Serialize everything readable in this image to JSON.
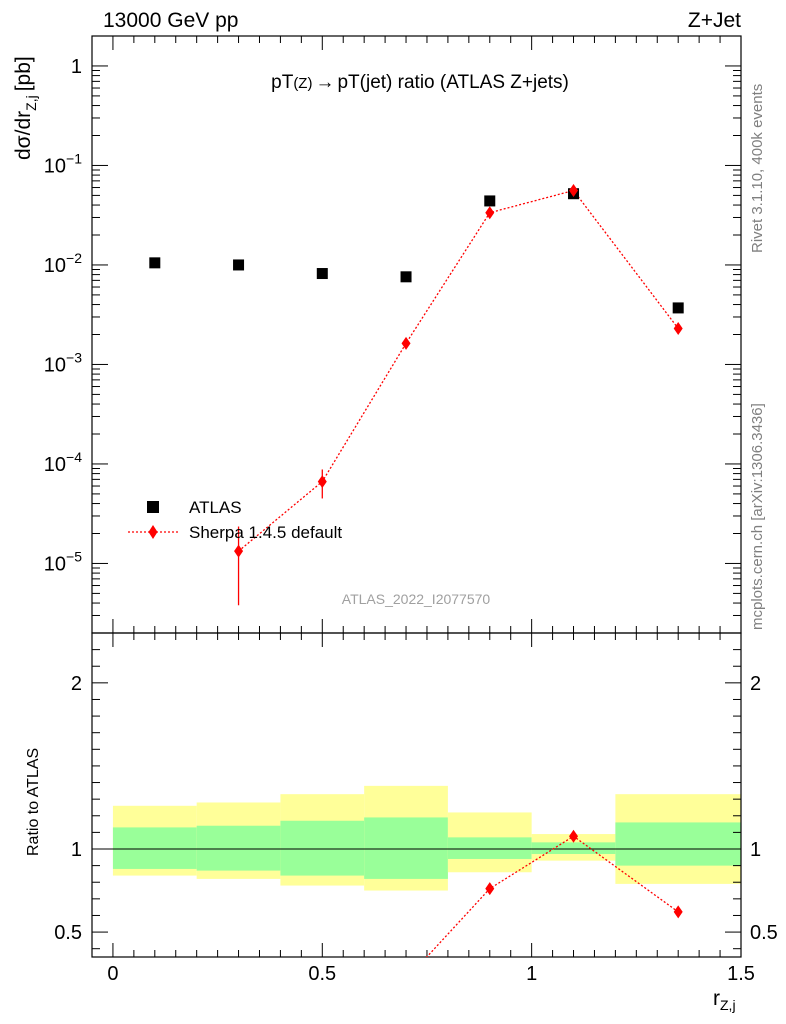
{
  "header": {
    "energy_label": "13000 GeV pp",
    "process_label": "Z+Jet"
  },
  "side_labels": {
    "rivet": "Rivet 3.1.10,  400k events",
    "mcplots": "mcplots.cern.ch [arXiv:1306.3436]"
  },
  "colors": {
    "data": "#000000",
    "mc": "#ff0000",
    "band_inner": "#99ff99",
    "band_outer": "#ffff99"
  },
  "chart_data": {
    "type": "scatter",
    "title_parts": {
      "a": "pT",
      "b": "(Z)",
      "arrow": "→",
      "c": "pT(jet) ratio (ATLAS Z+jets)"
    },
    "analysis_id": "ATLAS_2022_I2077570",
    "xlabel": {
      "main": "r",
      "sub": "Z,j"
    },
    "ylabel": {
      "main": "dσ/dr",
      "sub": "Z,j",
      "unit": "[pb]"
    },
    "ratio_ylabel": "Ratio to ATLAS",
    "x_range": [
      -0.05,
      1.5
    ],
    "y_range_log": [
      2e-06,
      2
    ],
    "ratio_range": [
      0.35,
      2.3
    ],
    "x_ticks": [
      {
        "v": 0,
        "label": "0"
      },
      {
        "v": 0.5,
        "label": "0.5"
      },
      {
        "v": 1,
        "label": "1"
      },
      {
        "v": 1.5,
        "label": "1.5"
      }
    ],
    "y_ticks": [
      {
        "v": 1,
        "base": "1",
        "exp": ""
      },
      {
        "v": 0.1,
        "base": "10",
        "exp": "−1"
      },
      {
        "v": 0.01,
        "base": "10",
        "exp": "−2"
      },
      {
        "v": 0.001,
        "base": "10",
        "exp": "−3"
      },
      {
        "v": 0.0001,
        "base": "10",
        "exp": "−4"
      },
      {
        "v": 1e-05,
        "base": "10",
        "exp": "−5"
      }
    ],
    "ratio_ticks": [
      {
        "v": 0.5,
        "label": "0.5"
      },
      {
        "v": 1,
        "label": "1"
      },
      {
        "v": 2,
        "label": "2"
      }
    ],
    "legend": [
      {
        "label": "ATLAS",
        "style": "square"
      },
      {
        "label": "Sherpa 1.4.5 default",
        "style": "diamond"
      }
    ],
    "bins": [
      {
        "lo": 0.0,
        "hi": 0.2,
        "x": 0.1,
        "data": 0.0105,
        "mc": null,
        "mc_lo": null,
        "mc_hi": null,
        "band_inner": [
          0.88,
          1.13
        ],
        "band_outer": [
          0.84,
          1.26
        ]
      },
      {
        "lo": 0.2,
        "hi": 0.4,
        "x": 0.3,
        "data": 0.01,
        "mc": 1.33e-05,
        "mc_lo": 3.8e-06,
        "mc_hi": 2.35e-05,
        "band_inner": [
          0.87,
          1.14
        ],
        "band_outer": [
          0.82,
          1.28
        ]
      },
      {
        "lo": 0.4,
        "hi": 0.6,
        "x": 0.5,
        "data": 0.0082,
        "mc": 6.65e-05,
        "mc_lo": 4.5e-05,
        "mc_hi": 8.8e-05,
        "band_inner": [
          0.84,
          1.17
        ],
        "band_outer": [
          0.78,
          1.33
        ]
      },
      {
        "lo": 0.6,
        "hi": 0.8,
        "x": 0.7,
        "data": 0.0076,
        "mc": 0.00163,
        "mc_lo": 0.00155,
        "mc_hi": 0.00171,
        "band_inner": [
          0.82,
          1.19
        ],
        "band_outer": [
          0.75,
          1.38
        ]
      },
      {
        "lo": 0.8,
        "hi": 1.0,
        "x": 0.9,
        "data": 0.044,
        "mc": 0.0335,
        "mc_lo": 0.0325,
        "mc_hi": 0.0345,
        "band_inner": [
          0.94,
          1.07
        ],
        "band_outer": [
          0.86,
          1.22
        ]
      },
      {
        "lo": 1.0,
        "hi": 1.2,
        "x": 1.1,
        "data": 0.052,
        "mc": 0.056,
        "mc_lo": 0.0545,
        "mc_hi": 0.0575,
        "band_inner": [
          0.97,
          1.04
        ],
        "band_outer": [
          0.93,
          1.09
        ]
      },
      {
        "lo": 1.2,
        "hi": 1.5,
        "x": 1.35,
        "data": 0.0037,
        "mc": 0.0023,
        "mc_lo": 0.00218,
        "mc_hi": 0.00242,
        "band_inner": [
          0.9,
          1.16
        ],
        "band_outer": [
          0.79,
          1.33
        ]
      }
    ]
  }
}
